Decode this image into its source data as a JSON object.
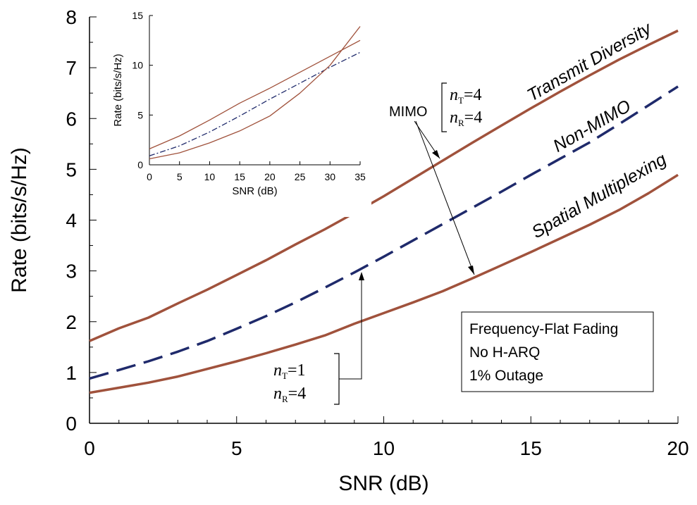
{
  "chart_data": [
    {
      "type": "line",
      "xlabel": "SNR (dB)",
      "ylabel": "Rate (bits/s/Hz)",
      "xlim": [
        0,
        20
      ],
      "ylim": [
        0,
        8
      ],
      "xticks": [
        0,
        5,
        10,
        15,
        20
      ],
      "yticks": [
        0,
        1,
        2,
        3,
        4,
        5,
        6,
        7,
        8
      ],
      "grid": false,
      "series": [
        {
          "name": "Transmit Diversity",
          "color": "#a0523c",
          "style": "solid",
          "x": [
            0,
            1,
            2,
            3,
            4,
            5,
            6,
            7,
            8,
            9,
            10,
            11,
            12,
            13,
            14,
            15,
            16,
            17,
            18,
            19,
            20
          ],
          "y": [
            1.62,
            1.87,
            2.08,
            2.36,
            2.63,
            2.92,
            3.21,
            3.52,
            3.82,
            4.14,
            4.47,
            4.82,
            5.17,
            5.52,
            5.86,
            6.2,
            6.53,
            6.85,
            7.16,
            7.45,
            7.73
          ]
        },
        {
          "name": "Non-MIMO",
          "color": "#1f2a6b",
          "style": "dashed",
          "x": [
            0,
            1,
            2,
            3,
            4,
            5,
            6,
            7,
            8,
            9,
            10,
            11,
            12,
            13,
            14,
            15,
            16,
            17,
            18,
            19,
            20
          ],
          "y": [
            0.88,
            1.05,
            1.22,
            1.41,
            1.62,
            1.86,
            2.11,
            2.38,
            2.67,
            2.97,
            3.28,
            3.6,
            3.92,
            4.24,
            4.56,
            4.89,
            5.21,
            5.53,
            5.89,
            6.26,
            6.63
          ]
        },
        {
          "name": "Spatial Multiplexing",
          "color": "#a0523c",
          "style": "solid",
          "x": [
            0,
            1,
            2,
            3,
            4,
            5,
            6,
            7,
            8,
            9,
            10,
            11,
            12,
            13,
            14,
            15,
            16,
            17,
            18,
            19,
            20
          ],
          "y": [
            0.6,
            0.7,
            0.8,
            0.92,
            1.07,
            1.22,
            1.38,
            1.55,
            1.73,
            1.96,
            2.17,
            2.38,
            2.6,
            2.85,
            3.11,
            3.37,
            3.64,
            3.91,
            4.2,
            4.53,
            4.89
          ]
        }
      ],
      "annotations": {
        "series_labels": {
          "transmit_diversity": "Transmit Diversity",
          "non_mimo": "Non-MIMO",
          "spatial_multiplexing": "Spatial Multiplexing"
        },
        "mimo_label": "MIMO",
        "mimo_nt": "=4",
        "mimo_nr": "=4",
        "siso_nt": "=1",
        "siso_nr": "=4",
        "n_symbol": "n",
        "sub_t": "T",
        "sub_r": "R",
        "legend_box": [
          "Frequency-Flat Fading",
          "No H-ARQ",
          "1% Outage"
        ]
      }
    },
    {
      "type": "line",
      "inset": true,
      "xlabel": "SNR (dB)",
      "ylabel": "Rate (bits/s/Hz)",
      "xlim": [
        0,
        35
      ],
      "ylim": [
        0,
        15
      ],
      "xticks": [
        0,
        5,
        10,
        15,
        20,
        25,
        30,
        35
      ],
      "yticks": [
        0,
        5,
        10,
        15
      ],
      "grid": false,
      "series": [
        {
          "name": "Transmit Diversity",
          "color": "#a0523c",
          "style": "solid",
          "x": [
            0,
            5,
            10,
            15,
            20,
            25,
            30,
            35
          ],
          "y": [
            1.6,
            2.9,
            4.5,
            6.2,
            7.7,
            9.3,
            10.9,
            12.5
          ]
        },
        {
          "name": "Non-MIMO",
          "color": "#1f2a6b",
          "style": "dashdot",
          "x": [
            0,
            5,
            10,
            15,
            20,
            25,
            30,
            35
          ],
          "y": [
            0.9,
            1.9,
            3.3,
            4.9,
            6.6,
            8.2,
            9.8,
            11.3
          ]
        },
        {
          "name": "Spatial Multiplexing",
          "color": "#a0523c",
          "style": "solid",
          "x": [
            0,
            5,
            10,
            15,
            20,
            25,
            30,
            35
          ],
          "y": [
            0.6,
            1.2,
            2.2,
            3.4,
            4.9,
            7.2,
            10.0,
            13.9
          ]
        }
      ]
    }
  ]
}
